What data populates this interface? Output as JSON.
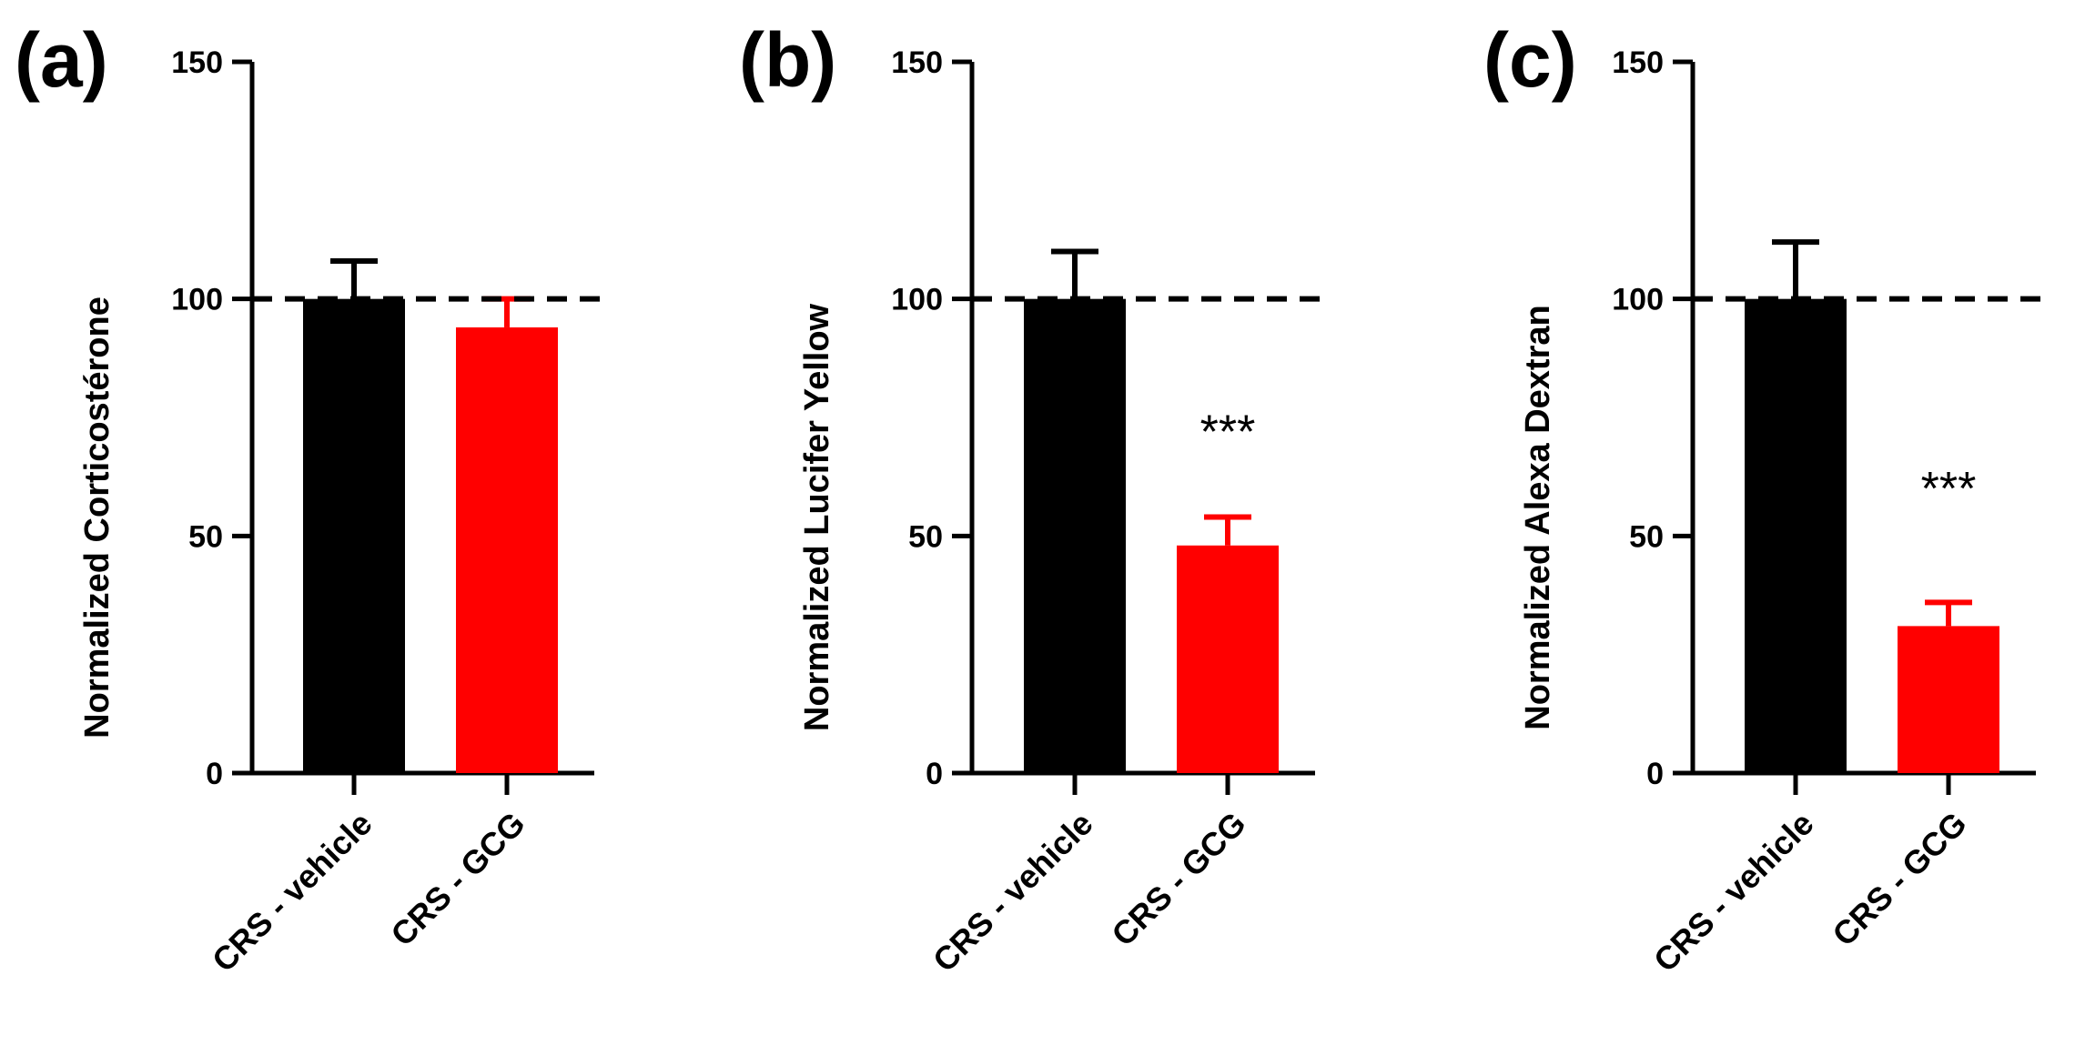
{
  "figure": {
    "reference_line": 100,
    "colors": {
      "vehicle": "#000000",
      "gcg": "#ff0000",
      "axis": "#000000"
    }
  },
  "chart_data": [
    {
      "type": "bar",
      "panel": "(a)",
      "ylabel": "Normalized Corticostérone",
      "ylim": [
        0,
        150
      ],
      "yticks": [
        "0",
        "50",
        "100",
        "150"
      ],
      "categories": [
        "CRS - vehicle",
        "CRS - GCG"
      ],
      "values": [
        100,
        94
      ],
      "errors": [
        8,
        6
      ],
      "colors": [
        "#000000",
        "#ff0000"
      ],
      "significance": "",
      "significance_y": 0
    },
    {
      "type": "bar",
      "panel": "(b)",
      "ylabel": "Normalized Lucifer Yellow",
      "ylim": [
        0,
        150
      ],
      "yticks": [
        "0",
        "50",
        "100",
        "150"
      ],
      "categories": [
        "CRS - vehicle",
        "CRS - GCG"
      ],
      "values": [
        100,
        48
      ],
      "errors": [
        10,
        6
      ],
      "colors": [
        "#000000",
        "#ff0000"
      ],
      "significance": "***",
      "significance_y": 72
    },
    {
      "type": "bar",
      "panel": "(c)",
      "ylabel": "Normalized Alexa Dextran",
      "ylim": [
        0,
        150
      ],
      "yticks": [
        "0",
        "50",
        "100",
        "150"
      ],
      "categories": [
        "CRS - vehicle",
        "CRS - GCG"
      ],
      "values": [
        100,
        31
      ],
      "errors": [
        12,
        5
      ],
      "colors": [
        "#000000",
        "#ff0000"
      ],
      "significance": "***",
      "significance_y": 60
    }
  ]
}
